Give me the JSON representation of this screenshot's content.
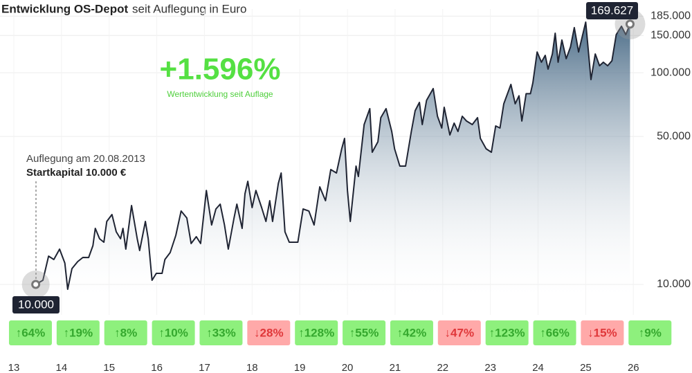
{
  "chart_data": {
    "type": "line",
    "title": "Entwicklung OS-Depot",
    "subtitle": "seit Auflegung in Euro",
    "headline": "+1.596%",
    "headline_caption": "Wertentwicklung seit Auflage",
    "annotations": [
      "Auflegung am 20.08.2013",
      "Startkapital 10.000 €"
    ],
    "start": {
      "value": 10000,
      "label": "10.000"
    },
    "end": {
      "value": 169627,
      "label": "169.627"
    },
    "log_y": true,
    "grid": true,
    "color": "#1f2433",
    "xlim": [
      12.71,
      27.23
    ],
    "xticks": [
      13,
      14,
      15,
      16,
      17,
      18,
      19,
      20,
      21,
      22,
      23,
      24,
      25,
      26
    ],
    "ylim": [
      9000,
      200000
    ],
    "yticks": [
      {
        "value": 10000,
        "label": "10.000"
      },
      {
        "value": 50000,
        "label": "50.000"
      },
      {
        "value": 100000,
        "label": "100.000"
      },
      {
        "value": 150000,
        "label": "150.000"
      },
      {
        "value": 185000,
        "label": "185.000"
      }
    ],
    "series": [
      {
        "name": "OS-Depot",
        "color": "#1f2433",
        "x": [
          13.46,
          13.61,
          13.73,
          13.84,
          13.96,
          14.07,
          14.13,
          14.22,
          14.34,
          14.45,
          14.57,
          14.66,
          14.71,
          14.8,
          14.89,
          14.95,
          15.06,
          15.15,
          15.24,
          15.29,
          15.35,
          15.47,
          15.59,
          15.64,
          15.76,
          15.82,
          15.9,
          15.99,
          16.11,
          16.17,
          16.28,
          16.4,
          16.51,
          16.63,
          16.72,
          16.83,
          16.92,
          17.04,
          17.15,
          17.24,
          17.33,
          17.42,
          17.5,
          17.62,
          17.68,
          17.79,
          17.85,
          17.91,
          18.0,
          18.08,
          18.2,
          18.29,
          18.37,
          18.43,
          18.55,
          18.61,
          18.69,
          18.78,
          18.96,
          19.07,
          19.19,
          19.3,
          19.42,
          19.54,
          19.65,
          19.77,
          19.88,
          19.94,
          20.0,
          20.06,
          20.18,
          20.23,
          20.35,
          20.47,
          20.52,
          20.64,
          20.7,
          20.81,
          20.93,
          20.99,
          21.1,
          21.22,
          21.34,
          21.42,
          21.51,
          21.57,
          21.66,
          21.8,
          21.89,
          21.98,
          22.03,
          22.15,
          22.24,
          22.32,
          22.41,
          22.5,
          22.62,
          22.73,
          22.79,
          22.91,
          23.02,
          23.11,
          23.2,
          23.28,
          23.43,
          23.52,
          23.6,
          23.66,
          23.75,
          23.84,
          23.89,
          23.98,
          24.07,
          24.15,
          24.21,
          24.3,
          24.36,
          24.42,
          24.5,
          24.59,
          24.68,
          24.76,
          24.85,
          25.0,
          25.11,
          25.2,
          25.29,
          25.37,
          25.46,
          25.55,
          25.64,
          25.75,
          25.84,
          25.93
        ],
        "values": [
          10000,
          10460,
          13610,
          13110,
          14680,
          12620,
          9490,
          11880,
          12820,
          13410,
          13400,
          15250,
          18400,
          16440,
          15830,
          19840,
          21390,
          17720,
          16440,
          18400,
          14680,
          23590,
          16440,
          14460,
          19840,
          16440,
          10460,
          11280,
          11280,
          13110,
          14140,
          17070,
          22220,
          20600,
          15600,
          16810,
          15600,
          27800,
          19090,
          22720,
          23950,
          19090,
          14680,
          20600,
          23950,
          18400,
          26810,
          30700,
          23060,
          27800,
          23060,
          19840,
          24870,
          19840,
          29990,
          33600,
          17720,
          15830,
          15830,
          22720,
          22220,
          19090,
          28900,
          24870,
          34880,
          33600,
          43730,
          48950,
          27800,
          19840,
          36230,
          32360,
          56910,
          67650,
          42120,
          47170,
          61360,
          67650,
          52780,
          43730,
          36230,
          36230,
          52780,
          66150,
          72380,
          56910,
          74030,
          84170,
          62280,
          54800,
          68700,
          50820,
          57790,
          52780,
          62280,
          59110,
          56910,
          61360,
          48950,
          43730,
          42120,
          56060,
          54800,
          71330,
          88060,
          71330,
          77810,
          59110,
          79580,
          79580,
          89420,
          125300,
          112100,
          120800,
          104000,
          122600,
          153700,
          112100,
          142800,
          116500,
          132300,
          163300,
          125300,
          173400,
          92800,
          122600,
          107900,
          112100,
          107900,
          113900,
          151400,
          165800,
          151400,
          169627
        ]
      }
    ],
    "annual_returns": {
      "values": [
        64,
        19,
        8,
        10,
        33,
        -28,
        128,
        55,
        42,
        -47,
        123,
        66,
        -15,
        9
      ],
      "value_labels": [
        "↑64%",
        "↑19%",
        "↑8%",
        "↑10%",
        "↑33%",
        "↓28%",
        "↑128%",
        "↑55%",
        "↑42%",
        "↓47%",
        "↑123%",
        "↑66%",
        "↓15%",
        "↑9%"
      ],
      "colors": {
        "up": "#8ef07d",
        "down": "#ffa9a9"
      },
      "text_colors": {
        "up": "#35a82e",
        "down": "#e0373a"
      }
    }
  }
}
